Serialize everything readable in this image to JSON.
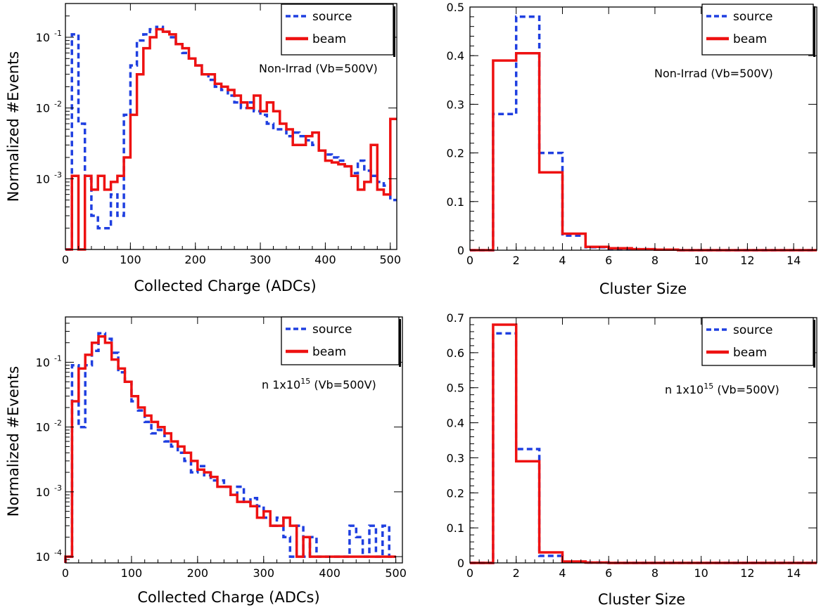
{
  "figure": {
    "ylabel_left": "Normalized #Events",
    "colors": {
      "source": "#1f3fe0",
      "beam": "#ee1111",
      "frame": "#000000"
    }
  },
  "chart_data": [
    {
      "id": "charge-nonirrad",
      "type": "histogram",
      "xlabel": "Collected Charge (ADCs)",
      "ylabel": "Normalized #Events",
      "annotation": "Non-Irrad (Vb=500V)",
      "xlim": [
        0,
        510
      ],
      "ylim": [
        0.0001,
        0.3
      ],
      "yscale": "log",
      "xticks": [
        {
          "v": 0,
          "label": "0"
        },
        {
          "v": 100,
          "label": "100"
        },
        {
          "v": 200,
          "label": "200"
        },
        {
          "v": 300,
          "label": "300"
        },
        {
          "v": 400,
          "label": "400"
        },
        {
          "v": 500,
          "label": "500"
        }
      ],
      "yticks": [
        {
          "v": 0.1,
          "label": "10",
          "exp": "-1"
        },
        {
          "v": 0.01,
          "label": "10",
          "exp": "-2"
        },
        {
          "v": 0.001,
          "label": "10",
          "exp": "-3"
        }
      ],
      "bin_width": 10,
      "legend": [
        {
          "name": "source",
          "style": "dashed"
        },
        {
          "name": "beam",
          "style": "solid"
        }
      ],
      "series": [
        {
          "name": "source",
          "x0": 0,
          "values": [
            0.0001,
            0.11,
            0.006,
            0.001,
            0.0003,
            0.0002,
            0.0002,
            0.0006,
            0.0003,
            0.008,
            0.04,
            0.09,
            0.11,
            0.13,
            0.14,
            0.12,
            0.1,
            0.08,
            0.06,
            0.05,
            0.04,
            0.03,
            0.025,
            0.02,
            0.018,
            0.015,
            0.012,
            0.01,
            0.012,
            0.009,
            0.008,
            0.006,
            0.005,
            0.005,
            0.004,
            0.0045,
            0.004,
            0.0035,
            0.003,
            0.0025,
            0.0022,
            0.002,
            0.0018,
            0.0015,
            0.0012,
            0.0018,
            0.0013,
            0.0011,
            0.0009,
            0.0008,
            0.0005
          ]
        },
        {
          "name": "beam",
          "x0": 0,
          "values": [
            0.0001,
            0.0011,
            0.0001,
            0.0011,
            0.0007,
            0.0011,
            0.0007,
            0.0009,
            0.0011,
            0.002,
            0.008,
            0.03,
            0.07,
            0.1,
            0.13,
            0.12,
            0.11,
            0.08,
            0.07,
            0.05,
            0.04,
            0.03,
            0.03,
            0.022,
            0.02,
            0.018,
            0.015,
            0.012,
            0.01,
            0.015,
            0.009,
            0.012,
            0.009,
            0.006,
            0.005,
            0.003,
            0.003,
            0.004,
            0.0045,
            0.0025,
            0.0018,
            0.0017,
            0.0016,
            0.0015,
            0.0011,
            0.0007,
            0.0009,
            0.003,
            0.0007,
            0.0006,
            0.007
          ]
        }
      ]
    },
    {
      "id": "cluster-nonirrad",
      "type": "histogram",
      "xlabel": "Cluster Size",
      "ylabel": "",
      "annotation": "Non-Irrad (Vb=500V)",
      "xlim": [
        0,
        15
      ],
      "ylim": [
        0,
        0.5
      ],
      "yscale": "linear",
      "xticks": [
        {
          "v": 0,
          "label": "0"
        },
        {
          "v": 2,
          "label": "2"
        },
        {
          "v": 4,
          "label": "4"
        },
        {
          "v": 6,
          "label": "6"
        },
        {
          "v": 8,
          "label": "8"
        },
        {
          "v": 10,
          "label": "10"
        },
        {
          "v": 12,
          "label": "12"
        },
        {
          "v": 14,
          "label": "14"
        }
      ],
      "yticks": [
        {
          "v": 0,
          "label": "0"
        },
        {
          "v": 0.1,
          "label": "0.1"
        },
        {
          "v": 0.2,
          "label": "0.2"
        },
        {
          "v": 0.3,
          "label": "0.3"
        },
        {
          "v": 0.4,
          "label": "0.4"
        },
        {
          "v": 0.5,
          "label": "0.5"
        }
      ],
      "bin_width": 1,
      "legend": [
        {
          "name": "source",
          "style": "dashed"
        },
        {
          "name": "beam",
          "style": "solid"
        }
      ],
      "series": [
        {
          "name": "source",
          "x0": 0,
          "values": [
            0,
            0.28,
            0.48,
            0.2,
            0.03,
            0.006,
            0.003,
            0.002,
            0.001,
            0,
            0,
            0,
            0,
            0,
            0
          ]
        },
        {
          "name": "beam",
          "x0": 0,
          "values": [
            0,
            0.39,
            0.405,
            0.16,
            0.034,
            0.007,
            0.004,
            0.002,
            0.001,
            0,
            0,
            0,
            0,
            0,
            0
          ]
        }
      ]
    },
    {
      "id": "charge-n1e15",
      "type": "histogram",
      "xlabel": "Collected Charge (ADCs)",
      "ylabel": "Normalized #Events",
      "annotation": "n 1x10",
      "annotation_sup": "15",
      "annotation_tail": " (Vb=500V)",
      "xlim": [
        0,
        510
      ],
      "ylim": [
        8e-05,
        0.5
      ],
      "yscale": "log",
      "xticks": [
        {
          "v": 0,
          "label": "0"
        },
        {
          "v": 100,
          "label": "100"
        },
        {
          "v": 200,
          "label": "200"
        },
        {
          "v": 300,
          "label": "300"
        },
        {
          "v": 400,
          "label": "400"
        },
        {
          "v": 500,
          "label": "500"
        }
      ],
      "yticks": [
        {
          "v": 0.1,
          "label": "10",
          "exp": "-1"
        },
        {
          "v": 0.01,
          "label": "10",
          "exp": "-2"
        },
        {
          "v": 0.001,
          "label": "10",
          "exp": "-3"
        },
        {
          "v": 0.0001,
          "label": "10",
          "exp": "-4"
        }
      ],
      "bin_width": 10,
      "legend": [
        {
          "name": "source",
          "style": "dashed"
        },
        {
          "name": "beam",
          "style": "solid"
        }
      ],
      "series": [
        {
          "name": "source",
          "x0": 0,
          "values": [
            0.0001,
            0.09,
            0.01,
            0.09,
            0.15,
            0.28,
            0.23,
            0.14,
            0.07,
            0.05,
            0.025,
            0.018,
            0.012,
            0.008,
            0.009,
            0.006,
            0.005,
            0.004,
            0.003,
            0.002,
            0.0025,
            0.0018,
            0.0015,
            0.0015,
            0.0012,
            0.0009,
            0.0012,
            0.0007,
            0.0008,
            0.0006,
            0.0004,
            0.0003,
            0.0004,
            0.0002,
            0.0001,
            0.0003,
            0.0001,
            0.0002,
            0.0001,
            0.0001,
            0.0001,
            0.0001,
            0.0001,
            0.0003,
            0.0002,
            0.0001,
            0.0003,
            0.0001,
            0.0003,
            0.0001
          ]
        },
        {
          "name": "beam",
          "x0": 0,
          "values": [
            0.0001,
            0.025,
            0.08,
            0.13,
            0.2,
            0.25,
            0.2,
            0.11,
            0.08,
            0.05,
            0.03,
            0.02,
            0.015,
            0.012,
            0.01,
            0.008,
            0.006,
            0.005,
            0.004,
            0.003,
            0.0022,
            0.002,
            0.0017,
            0.0012,
            0.0012,
            0.0009,
            0.0007,
            0.0007,
            0.0006,
            0.0004,
            0.0005,
            0.0003,
            0.0003,
            0.0004,
            0.0003,
            0.0001,
            0.0002,
            0.0001,
            0.0001,
            0.0001,
            0.0001,
            0.0001,
            0.0001,
            0.0001,
            0.0001,
            0.0001,
            0.0001,
            0.0001,
            0.0001,
            0.0001
          ]
        }
      ]
    },
    {
      "id": "cluster-n1e15",
      "type": "histogram",
      "xlabel": "Cluster Size",
      "ylabel": "",
      "annotation": "n 1x10",
      "annotation_sup": "15",
      "annotation_tail": " (Vb=500V)",
      "xlim": [
        0,
        15
      ],
      "ylim": [
        0,
        0.7
      ],
      "yscale": "linear",
      "xticks": [
        {
          "v": 0,
          "label": "0"
        },
        {
          "v": 2,
          "label": "2"
        },
        {
          "v": 4,
          "label": "4"
        },
        {
          "v": 6,
          "label": "6"
        },
        {
          "v": 8,
          "label": "8"
        },
        {
          "v": 10,
          "label": "10"
        },
        {
          "v": 12,
          "label": "12"
        },
        {
          "v": 14,
          "label": "14"
        }
      ],
      "yticks": [
        {
          "v": 0,
          "label": "0"
        },
        {
          "v": 0.1,
          "label": "0.1"
        },
        {
          "v": 0.2,
          "label": "0.2"
        },
        {
          "v": 0.3,
          "label": "0.3"
        },
        {
          "v": 0.4,
          "label": "0.4"
        },
        {
          "v": 0.5,
          "label": "0.5"
        },
        {
          "v": 0.6,
          "label": "0.6"
        },
        {
          "v": 0.7,
          "label": "0.7"
        }
      ],
      "bin_width": 1,
      "legend": [
        {
          "name": "source",
          "style": "dashed"
        },
        {
          "name": "beam",
          "style": "solid"
        }
      ],
      "series": [
        {
          "name": "source",
          "x0": 0,
          "values": [
            0,
            0.655,
            0.325,
            0.02,
            0.003,
            0.001,
            0,
            0,
            0,
            0,
            0,
            0,
            0,
            0,
            0
          ]
        },
        {
          "name": "beam",
          "x0": 0,
          "values": [
            0,
            0.68,
            0.29,
            0.03,
            0.004,
            0.001,
            0,
            0,
            0,
            0,
            0,
            0,
            0,
            0,
            0
          ]
        }
      ]
    }
  ]
}
